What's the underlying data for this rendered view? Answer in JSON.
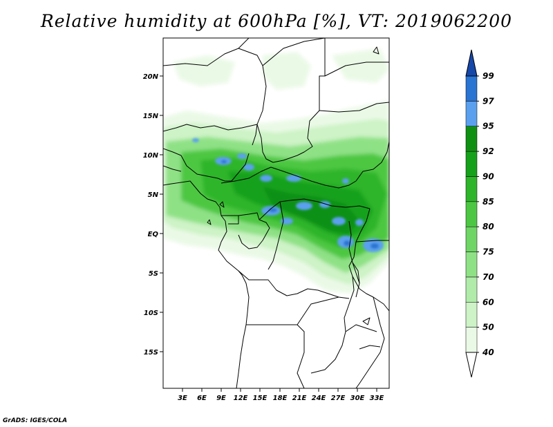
{
  "title": "Relative humidity at 600hPa [%], VT: 2019062200",
  "credit": "GrADS: IGES/COLA",
  "axes": {
    "lat_labels": [
      "20N",
      "15N",
      "10N",
      "5N",
      "EQ",
      "5S",
      "10S",
      "15S"
    ],
    "lon_labels": [
      "3E",
      "6E",
      "9E",
      "12E",
      "15E",
      "18E",
      "21E",
      "24E",
      "27E",
      "30E",
      "33E"
    ]
  },
  "colorbar": {
    "levels": [
      "40",
      "50",
      "60",
      "70",
      "75",
      "80",
      "85",
      "90",
      "92",
      "95",
      "97",
      "99"
    ],
    "colors": [
      "#ffffff",
      "#eaf9e6",
      "#cdf3c6",
      "#b0ebaa",
      "#8fe186",
      "#6fd565",
      "#4dc743",
      "#2eb52a",
      "#16a11b",
      "#109012",
      "#5aa0ee",
      "#2a74d2",
      "#1648aa"
    ]
  },
  "chart_data": {
    "type": "heatmap",
    "variable": "Relative humidity",
    "level": "600hPa",
    "units": "%",
    "valid_time": "2019062200",
    "lat_range": [
      "20N",
      "15S"
    ],
    "lon_range": [
      "3E",
      "33E"
    ],
    "contour_levels": [
      40,
      50,
      60,
      70,
      75,
      80,
      85,
      90,
      92,
      95,
      97,
      99
    ]
  }
}
